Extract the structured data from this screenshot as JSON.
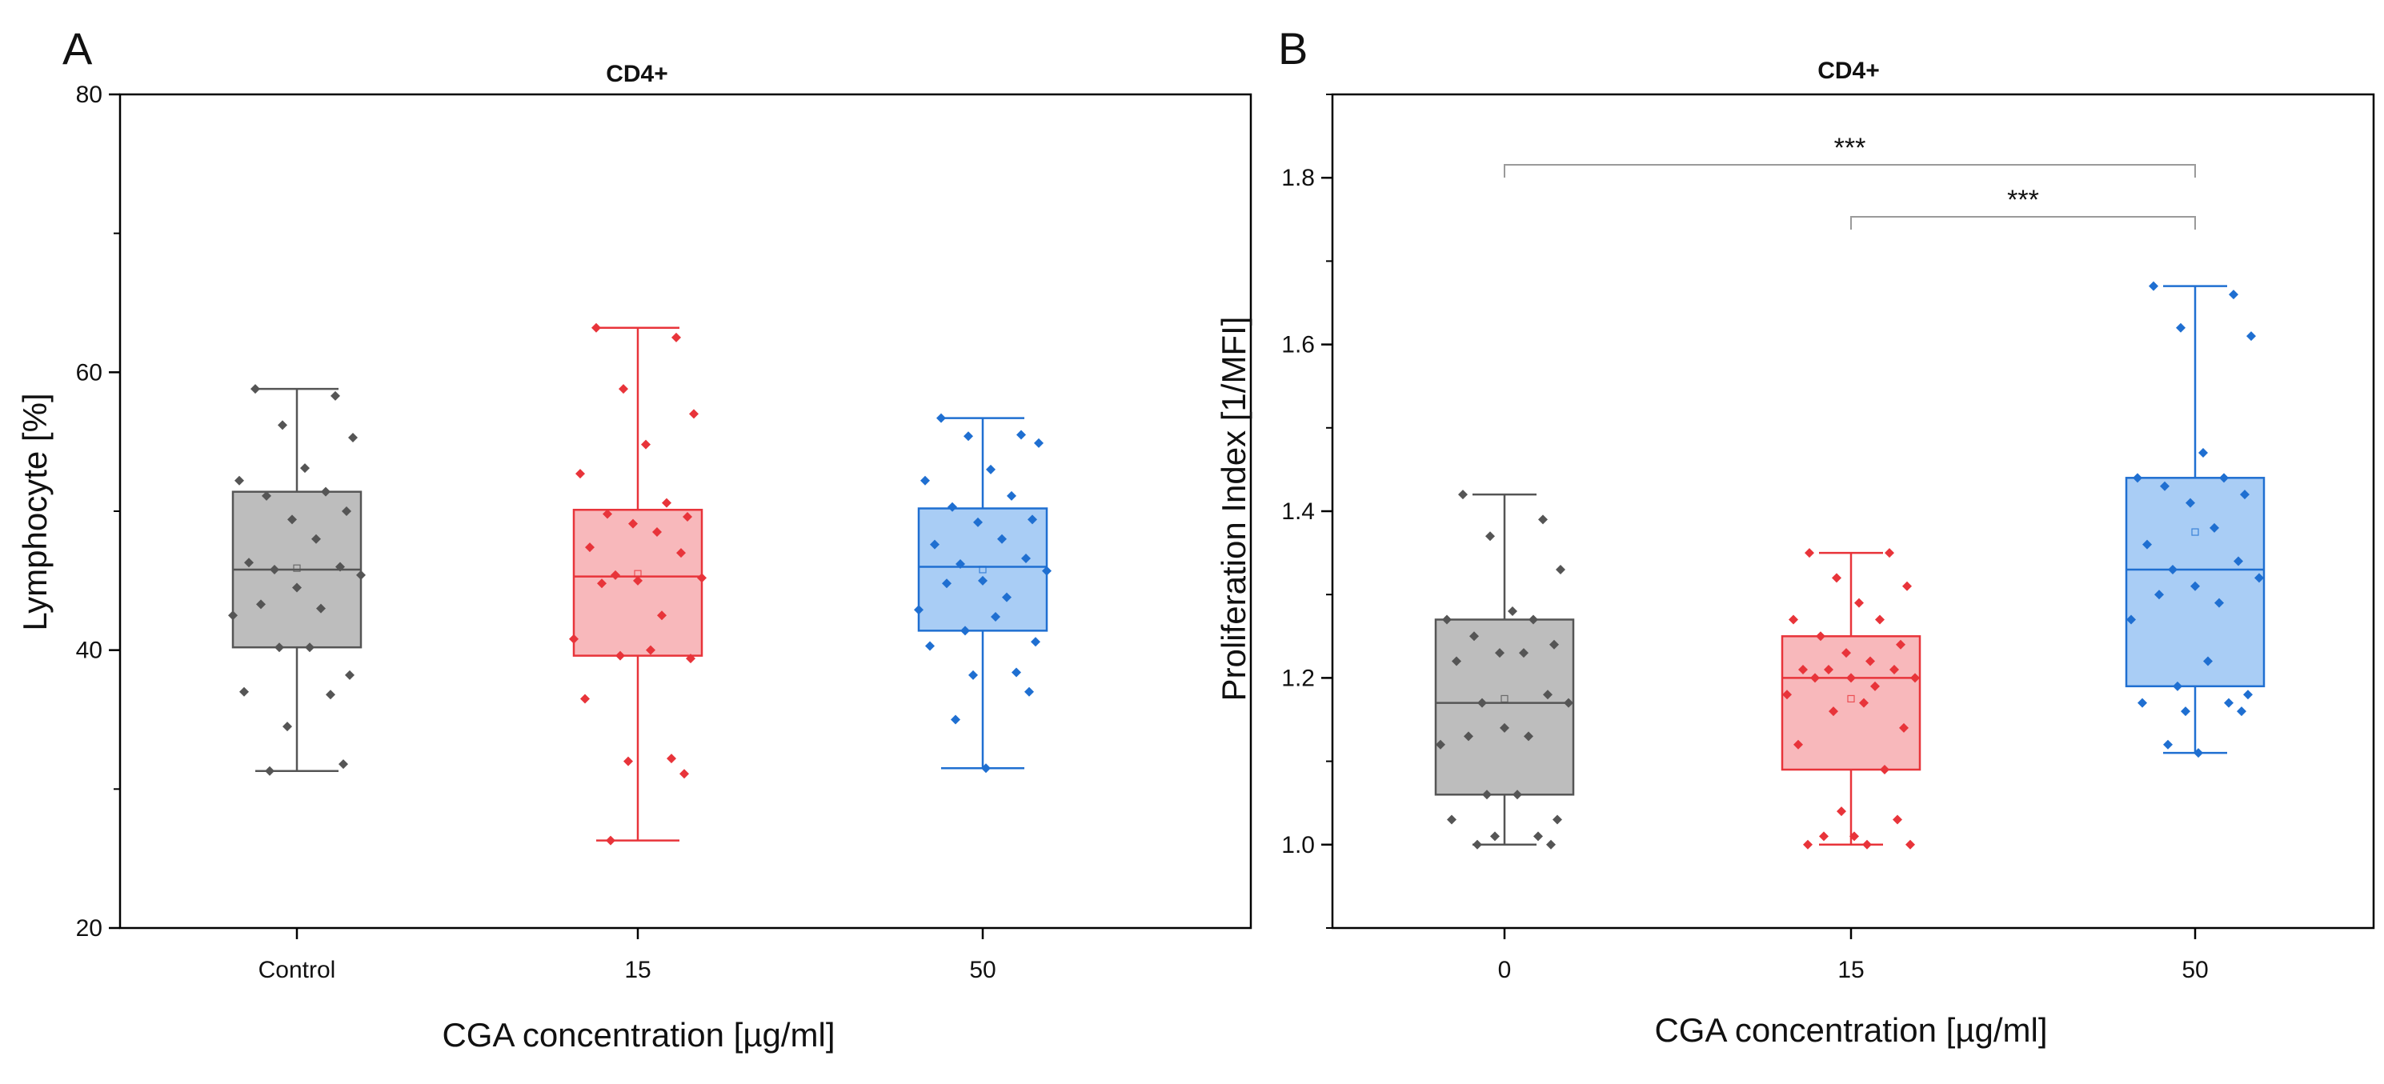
{
  "figure": {
    "panels": [
      "A",
      "B"
    ]
  },
  "chart_data": [
    {
      "panel": "A",
      "type": "box",
      "title": "CD4+",
      "xlabel": "CGA concentration [µg/ml]",
      "ylabel": "Lymphocyte [%]",
      "ylim": [
        20,
        80
      ],
      "yticks": [
        20,
        40,
        60,
        80
      ],
      "categories": [
        "Control",
        "15",
        "50"
      ],
      "series": [
        {
          "name": "Control",
          "color": "#555555",
          "fill": "#bdbdbd",
          "whisker_min": 31.3,
          "q1": 40.2,
          "median": 45.8,
          "q3": 51.4,
          "whisker_max": 58.8,
          "mean": 45.9,
          "points": [
            58.8,
            58.3,
            56.2,
            55.3,
            53.1,
            52.2,
            51.4,
            51.1,
            50.0,
            49.4,
            48.0,
            46.3,
            46.0,
            45.8,
            45.4,
            44.5,
            43.3,
            43.0,
            42.5,
            40.2,
            40.2,
            38.2,
            37.0,
            36.8,
            34.5,
            31.8,
            31.3
          ]
        },
        {
          "name": "15",
          "color": "#e8343a",
          "fill": "#f8b8bb",
          "whisker_min": 26.3,
          "q1": 39.6,
          "median": 45.3,
          "q3": 50.1,
          "whisker_max": 63.2,
          "mean": 45.5,
          "points": [
            63.2,
            62.5,
            58.8,
            57.0,
            54.8,
            52.7,
            50.6,
            49.8,
            49.6,
            49.1,
            48.5,
            47.4,
            47.0,
            45.4,
            45.2,
            45.0,
            44.8,
            42.5,
            40.8,
            40.0,
            39.6,
            39.4,
            36.5,
            32.2,
            32.0,
            31.1,
            26.3
          ]
        },
        {
          "name": "50",
          "color": "#1f6fd1",
          "fill": "#a9cdf5",
          "whisker_min": 31.5,
          "q1": 41.4,
          "median": 46.0,
          "q3": 50.2,
          "whisker_max": 56.7,
          "mean": 45.8,
          "points": [
            56.7,
            55.5,
            55.4,
            54.9,
            53.0,
            52.2,
            51.1,
            50.3,
            49.4,
            49.2,
            48.0,
            47.6,
            46.6,
            46.2,
            45.7,
            45.0,
            44.8,
            43.8,
            42.9,
            42.4,
            41.4,
            40.6,
            40.3,
            38.4,
            38.2,
            37.0,
            35.0,
            31.5
          ]
        }
      ]
    },
    {
      "panel": "B",
      "type": "box",
      "title": "CD4+",
      "xlabel": "CGA concentration [µg/ml]",
      "ylabel": "Proliferation Index [1/MFI]",
      "ylim": [
        0.9,
        1.9
      ],
      "yticks": [
        1.0,
        1.2,
        1.4,
        1.6,
        1.8
      ],
      "categories": [
        "0",
        "15",
        "50"
      ],
      "significance": [
        {
          "from": "0",
          "to": "50",
          "label": "***"
        },
        {
          "from": "15",
          "to": "50",
          "label": "***"
        }
      ],
      "series": [
        {
          "name": "0",
          "color": "#555555",
          "fill": "#bdbdbd",
          "whisker_min": 1.0,
          "q1": 1.06,
          "median": 1.17,
          "q3": 1.27,
          "whisker_max": 1.42,
          "mean": 1.175,
          "points": [
            1.42,
            1.39,
            1.37,
            1.33,
            1.28,
            1.27,
            1.27,
            1.25,
            1.24,
            1.23,
            1.23,
            1.22,
            1.18,
            1.17,
            1.17,
            1.14,
            1.13,
            1.13,
            1.12,
            1.06,
            1.06,
            1.03,
            1.03,
            1.01,
            1.01,
            1.0,
            1.0
          ]
        },
        {
          "name": "15",
          "color": "#e8343a",
          "fill": "#f8b8bb",
          "whisker_min": 1.0,
          "q1": 1.09,
          "median": 1.2,
          "q3": 1.25,
          "whisker_max": 1.35,
          "mean": 1.175,
          "points": [
            1.35,
            1.35,
            1.32,
            1.31,
            1.29,
            1.27,
            1.27,
            1.25,
            1.24,
            1.23,
            1.22,
            1.21,
            1.21,
            1.21,
            1.2,
            1.2,
            1.2,
            1.19,
            1.18,
            1.17,
            1.16,
            1.14,
            1.12,
            1.09,
            1.04,
            1.03,
            1.01,
            1.01,
            1.0,
            1.0,
            1.0
          ]
        },
        {
          "name": "50",
          "color": "#1f6fd1",
          "fill": "#a9cdf5",
          "whisker_min": 1.11,
          "q1": 1.19,
          "median": 1.33,
          "q3": 1.44,
          "whisker_max": 1.67,
          "mean": 1.375,
          "points": [
            1.67,
            1.66,
            1.62,
            1.61,
            1.47,
            1.44,
            1.44,
            1.43,
            1.42,
            1.41,
            1.38,
            1.36,
            1.34,
            1.33,
            1.32,
            1.31,
            1.3,
            1.29,
            1.27,
            1.22,
            1.19,
            1.18,
            1.17,
            1.17,
            1.16,
            1.16,
            1.12,
            1.11
          ]
        }
      ]
    }
  ]
}
